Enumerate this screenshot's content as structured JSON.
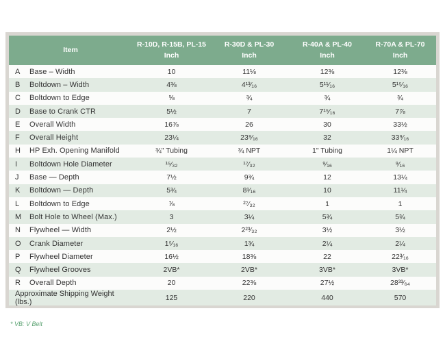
{
  "colors": {
    "header_green": "#7dab8d",
    "stripe_green": "#e2ebe3",
    "frame_gray": "#d9d6d1",
    "footnote_green": "#5aa271",
    "text": "#333333"
  },
  "table": {
    "header": {
      "item_label": "Item",
      "unit_label": "Inch",
      "columns": [
        {
          "label": "R-10D, R-15B, PL-15",
          "unit": "Inch"
        },
        {
          "label": "R-30D & PL-30",
          "unit": "Inch"
        },
        {
          "label": "R-40A & PL-40",
          "unit": "Inch"
        },
        {
          "label": "R-70A & PL-70",
          "unit": "Inch"
        }
      ]
    },
    "rows": [
      {
        "letter": "A",
        "item": "Base – Width",
        "values": [
          "10",
          "11⅛",
          "12⅜",
          "12⅜"
        ]
      },
      {
        "letter": "B",
        "item": "Boltdown – Width",
        "values": [
          "4⅜",
          "4¹³⁄₁₆",
          "5¹¹⁄₁₆",
          "5¹⁵⁄₁₆"
        ]
      },
      {
        "letter": "C",
        "item": "Boltdown to Edge",
        "values": [
          "⅝",
          "¾",
          "¾",
          "¾"
        ]
      },
      {
        "letter": "D",
        "item": "Base to Crank CTR",
        "values": [
          "5½",
          "7",
          "7¹⁵⁄₁₆",
          "7⅞"
        ]
      },
      {
        "letter": "E",
        "item": "Overall Width",
        "values": [
          "16⅞",
          "26",
          "30",
          "33½"
        ]
      },
      {
        "letter": "F",
        "item": "Overall Height",
        "values": [
          "23¼",
          "23⁹⁄₁₆",
          "32",
          "33⁹⁄₁₆"
        ]
      },
      {
        "letter": "H",
        "item": "HP Exh. Opening Manifold",
        "values": [
          "¾\" Tubing",
          "¾ NPT",
          "1\" Tubing",
          "1¼ NPT"
        ]
      },
      {
        "letter": "I",
        "item": "Boltdown Hole Diameter",
        "values": [
          "¹⁵⁄₃₂",
          "¹⁷⁄₃₂",
          "⁹⁄₁₆",
          "⁹⁄₁₆"
        ]
      },
      {
        "letter": "J",
        "item": "Base — Depth",
        "values": [
          "7½",
          "9¾",
          "12",
          "13¼"
        ]
      },
      {
        "letter": "K",
        "item": "Boltdown — Depth",
        "values": [
          "5¾",
          "8¹⁄₁₆",
          "10",
          "11¼"
        ]
      },
      {
        "letter": "L",
        "item": "Boltdown to Edge",
        "values": [
          "⅞",
          "²⁷⁄₃₂",
          "1",
          "1"
        ]
      },
      {
        "letter": "M",
        "item": "Bolt Hole to Wheel (Max.)",
        "values": [
          "3",
          "3¼",
          "5¾",
          "5¾"
        ]
      },
      {
        "letter": "N",
        "item": "Flywheel — Width",
        "values": [
          "2½",
          "2²³⁄₃₂",
          "3½",
          "3½"
        ]
      },
      {
        "letter": "O",
        "item": "Crank Diameter",
        "values": [
          "1⁵⁄₁₆",
          "1¾",
          "2¼",
          "2¼"
        ]
      },
      {
        "letter": "P",
        "item": "Flywheel Diameter",
        "values": [
          "16½",
          "18⅜",
          "22",
          "22³⁄₁₆"
        ]
      },
      {
        "letter": "Q",
        "item": "Flywheel Grooves",
        "values": [
          "2VB*",
          "2VB*",
          "3VB*",
          "3VB*"
        ]
      },
      {
        "letter": "R",
        "item": "Overall Depth",
        "values": [
          "20",
          "22⅜",
          "27½",
          "28³³⁄₆₄"
        ]
      }
    ],
    "summary_row": {
      "label": "Approximate Shipping Weight (lbs.)",
      "values": [
        "125",
        "220",
        "440",
        "570"
      ]
    }
  },
  "footnote": "* VB: V Belt"
}
